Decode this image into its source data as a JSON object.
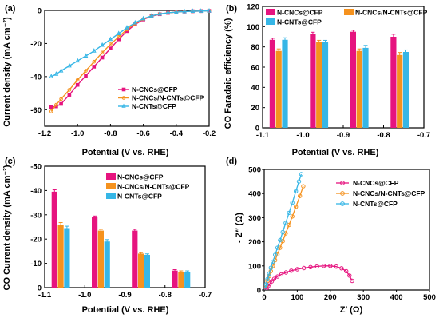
{
  "colors": {
    "pink": "#e6147f",
    "orange": "#f5921e",
    "cyan": "#36b6e6"
  },
  "chart_data": [
    {
      "panel": "(a)",
      "type": "line",
      "xlabel": "Potential (V vs. RHE)",
      "ylabel": "Current density (mA cm⁻²)",
      "xlim": [
        -1.2,
        -0.2
      ],
      "ylim": [
        -70,
        0
      ],
      "xticks": [
        -1.2,
        -1.0,
        -0.8,
        -0.6,
        -0.4,
        -0.2
      ],
      "yticks": [
        0,
        -20,
        -40,
        -60
      ],
      "legend_position": "lower-right",
      "series": [
        {
          "name": "N-CNCs@CFP",
          "color": "#e6147f",
          "marker": "square",
          "x": [
            -1.16,
            -1.13,
            -1.1,
            -1.05,
            -1.0,
            -0.95,
            -0.9,
            -0.85,
            -0.8,
            -0.75,
            -0.7,
            -0.65,
            -0.6,
            -0.55,
            -0.5,
            -0.45,
            -0.4,
            -0.35,
            -0.3,
            -0.25,
            -0.2
          ],
          "y": [
            -58.5,
            -58,
            -56.5,
            -51,
            -45,
            -39.5,
            -34,
            -28.5,
            -23,
            -17.5,
            -12.5,
            -8.5,
            -5.5,
            -3.5,
            -2.3,
            -1.5,
            -1.0,
            -0.7,
            -0.5,
            -0.4,
            -0.3
          ]
        },
        {
          "name": "N-CNCs/N-CNTs@CFP",
          "color": "#f5921e",
          "marker": "circle",
          "x": [
            -1.16,
            -1.13,
            -1.1,
            -1.05,
            -1.0,
            -0.95,
            -0.9,
            -0.85,
            -0.8,
            -0.75,
            -0.7,
            -0.65,
            -0.6,
            -0.55,
            -0.5,
            -0.45,
            -0.4,
            -0.35,
            -0.3,
            -0.25,
            -0.2
          ],
          "y": [
            -61,
            -57,
            -53.5,
            -48,
            -42,
            -36.5,
            -31,
            -25.5,
            -20.5,
            -16,
            -11.5,
            -8,
            -5.2,
            -3.4,
            -2.2,
            -1.5,
            -1.0,
            -0.7,
            -0.5,
            -0.4,
            -0.3
          ]
        },
        {
          "name": "N-CNTs@CFP",
          "color": "#36b6e6",
          "marker": "triangle",
          "x": [
            -1.16,
            -1.13,
            -1.1,
            -1.05,
            -1.0,
            -0.95,
            -0.9,
            -0.85,
            -0.8,
            -0.75,
            -0.7,
            -0.65,
            -0.6,
            -0.55,
            -0.5,
            -0.45,
            -0.4,
            -0.35,
            -0.3,
            -0.25,
            -0.2
          ],
          "y": [
            -40,
            -38.5,
            -36.5,
            -33.5,
            -30.5,
            -27.5,
            -24.5,
            -21,
            -17.5,
            -14,
            -10.5,
            -7.5,
            -5,
            -3.3,
            -2.1,
            -1.4,
            -1.0,
            -0.7,
            -0.5,
            -0.4,
            -0.3
          ]
        }
      ]
    },
    {
      "panel": "(b)",
      "type": "bar",
      "xlabel": "Potential (V vs. RHE)",
      "ylabel": "CO Faradaic efficiency (%)",
      "xlim": [
        -1.1,
        -0.7
      ],
      "ylim": [
        0,
        120
      ],
      "xticks": [
        -1.1,
        -1.0,
        -0.9,
        -0.8,
        -0.7
      ],
      "yticks": [
        0,
        20,
        40,
        60,
        80,
        100,
        120
      ],
      "legend_position": "top",
      "groups_x": [
        -1.06,
        -0.96,
        -0.86,
        -0.76
      ],
      "series": [
        {
          "name": "N-CNCs@CFP",
          "color": "#e6147f",
          "values": [
            87,
            93,
            95,
            90
          ],
          "errors": [
            1.5,
            1.5,
            1.5,
            2.5
          ]
        },
        {
          "name": "N-CNCs/N-CNTs@CFP",
          "color": "#f5921e",
          "values": [
            76,
            85,
            76,
            72
          ],
          "errors": [
            2,
            1.5,
            2,
            2.5
          ]
        },
        {
          "name": "N-CNTs@CFP",
          "color": "#36b6e6",
          "values": [
            87,
            85,
            79,
            75
          ],
          "errors": [
            2,
            1.5,
            2.5,
            2
          ]
        }
      ]
    },
    {
      "panel": "(c)",
      "type": "bar",
      "xlabel": "Potential (V vs. RHE)",
      "ylabel": "CO Current density (mA cm⁻²)",
      "xlim": [
        -1.1,
        -0.7
      ],
      "ylim": [
        0,
        -50
      ],
      "xticks": [
        -1.1,
        -1.0,
        -0.9,
        -0.8,
        -0.7
      ],
      "yticks": [
        0,
        -10,
        -20,
        -30,
        -40,
        -50
      ],
      "legend_position": "top-right",
      "groups_x": [
        -1.06,
        -0.96,
        -0.86,
        -0.76
      ],
      "series": [
        {
          "name": "N-CNCs@CFP",
          "color": "#e6147f",
          "values": [
            -39.5,
            -29,
            -23.5,
            -7
          ],
          "errors": [
            0.8,
            0.5,
            0.5,
            0.4
          ]
        },
        {
          "name": "N-CNCs/N-CNTs@CFP",
          "color": "#f5921e",
          "values": [
            -26,
            -23.5,
            -14,
            -6.5
          ],
          "errors": [
            0.8,
            0.5,
            0.4,
            0.4
          ]
        },
        {
          "name": "N-CNTs@CFP",
          "color": "#36b6e6",
          "values": [
            -24.5,
            -19,
            -13.5,
            -6.5
          ],
          "errors": [
            0.8,
            0.8,
            0.4,
            0.4
          ]
        }
      ]
    },
    {
      "panel": "(d)",
      "type": "scatter",
      "xlabel": "Z′ (Ω)",
      "ylabel": "- Z″ (Ω)",
      "xlim": [
        0,
        500
      ],
      "ylim": [
        0,
        500
      ],
      "xticks": [
        0,
        100,
        200,
        300,
        400,
        500
      ],
      "yticks": [
        0,
        100,
        200,
        300,
        400,
        500
      ],
      "legend_position": "top-right",
      "series": [
        {
          "name": "N-CNCs@CFP",
          "color": "#e6147f",
          "marker": "circle",
          "x": [
            5,
            8,
            12,
            17,
            23,
            30,
            40,
            52,
            66,
            82,
            100,
            120,
            140,
            160,
            180,
            200,
            218,
            234,
            248,
            258,
            266
          ],
          "y": [
            2,
            8,
            16,
            26,
            36,
            46,
            56,
            65,
            73,
            80,
            86,
            91,
            95,
            98,
            100,
            100,
            97,
            90,
            78,
            60,
            38
          ]
        },
        {
          "name": "N-CNCs/N-CNTs@CFP",
          "color": "#f5921e",
          "marker": "circle",
          "x": [
            3,
            6,
            10,
            15,
            20,
            26,
            33,
            40,
            48,
            56,
            65,
            75,
            85,
            96,
            108,
            118
          ],
          "y": [
            5,
            20,
            38,
            58,
            78,
            100,
            124,
            148,
            175,
            203,
            235,
            270,
            305,
            345,
            390,
            430
          ]
        },
        {
          "name": "N-CNTs@CFP",
          "color": "#36b6e6",
          "marker": "circle",
          "x": [
            3,
            6,
            10,
            15,
            20,
            26,
            33,
            40,
            48,
            56,
            65,
            75,
            85,
            96,
            105,
            112
          ],
          "y": [
            6,
            24,
            45,
            68,
            92,
            118,
            146,
            175,
            207,
            240,
            278,
            320,
            362,
            410,
            450,
            480
          ]
        }
      ]
    }
  ]
}
